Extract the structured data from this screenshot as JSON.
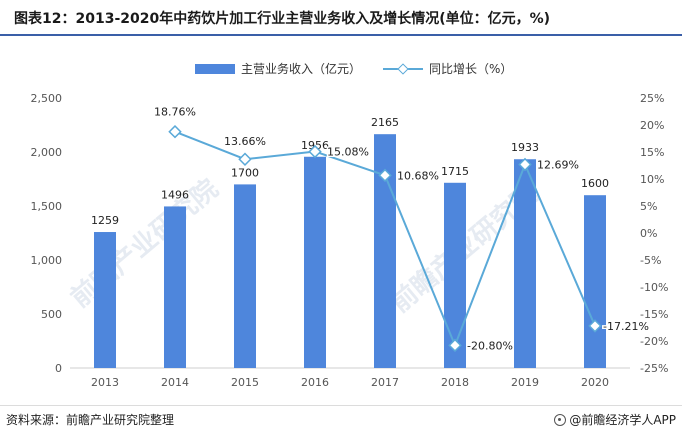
{
  "title": "图表12：2013-2020年中药饮片加工行业主营业务收入及增长情况(单位：亿元，%)",
  "legend": {
    "bar": "主营业务收入（亿元）",
    "line": "同比增长（%）"
  },
  "source": "资料来源：前瞻产业研究院整理",
  "brand": "@前瞻经济学人APP",
  "watermark": "前瞻产业研究院",
  "colors": {
    "bar": "#4e86dc",
    "line": "#5aa9d8",
    "axis": "#555555"
  },
  "chart_data": {
    "type": "bar+line",
    "categories": [
      "2013",
      "2014",
      "2015",
      "2016",
      "2017",
      "2018",
      "2019",
      "2020"
    ],
    "series": [
      {
        "name": "主营业务收入（亿元）",
        "type": "bar",
        "axis": "left",
        "values": [
          1259,
          1496,
          1700,
          1956,
          2165,
          1715,
          1933,
          1600
        ],
        "labels": [
          "1259",
          "1496",
          "1700",
          "1956",
          "2165",
          "1715",
          "1933",
          "1600"
        ]
      },
      {
        "name": "同比增长（%）",
        "type": "line",
        "axis": "right",
        "values": [
          null,
          18.76,
          13.66,
          15.08,
          10.68,
          -20.8,
          12.69,
          -17.21
        ],
        "labels": [
          "",
          "18.76%",
          "13.66%",
          "15.08%",
          "10.68%",
          "-20.80%",
          "12.69%",
          "-17.21%"
        ]
      }
    ],
    "y_left": {
      "min": 0,
      "max": 2500,
      "step": 500,
      "ticks": [
        "0",
        "500",
        "1,000",
        "1,500",
        "2,000",
        "2,500"
      ]
    },
    "y_right": {
      "min": -25,
      "max": 25,
      "step": 5,
      "ticks": [
        "-25%",
        "-20%",
        "-15%",
        "-10%",
        "-5%",
        "0%",
        "5%",
        "10%",
        "15%",
        "20%",
        "25%"
      ]
    },
    "grid": false
  }
}
